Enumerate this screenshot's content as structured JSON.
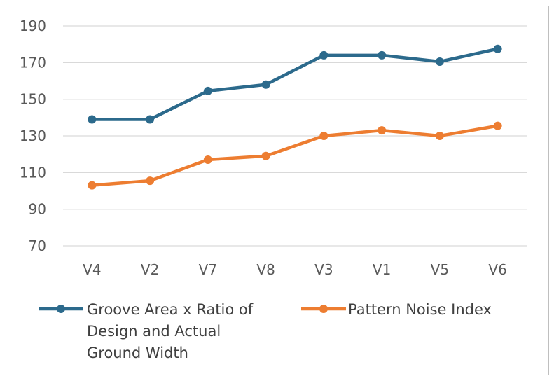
{
  "chart_data": {
    "type": "line",
    "title": "",
    "xlabel": "",
    "ylabel": "",
    "categories": [
      "V4",
      "V2",
      "V7",
      "V8",
      "V3",
      "V1",
      "V5",
      "V6"
    ],
    "ylim": [
      70,
      190
    ],
    "yticks": [
      70,
      90,
      110,
      130,
      150,
      170,
      190
    ],
    "grid": true,
    "legend_position": "bottom",
    "series": [
      {
        "name": "Groove Area x Ratio of Design and Actual Ground Width",
        "legend_lines": [
          "Groove Area x Ratio of",
          "Design and Actual",
          "Ground Width"
        ],
        "color": "#2c6a8c",
        "values": [
          139,
          139,
          154.5,
          158,
          174,
          174,
          170.5,
          177.5
        ]
      },
      {
        "name": "Pattern Noise Index",
        "legend_lines": [
          "Pattern Noise Index"
        ],
        "color": "#ed7d31",
        "values": [
          103,
          105.5,
          117,
          119,
          130,
          133,
          130,
          135.5
        ]
      }
    ]
  }
}
